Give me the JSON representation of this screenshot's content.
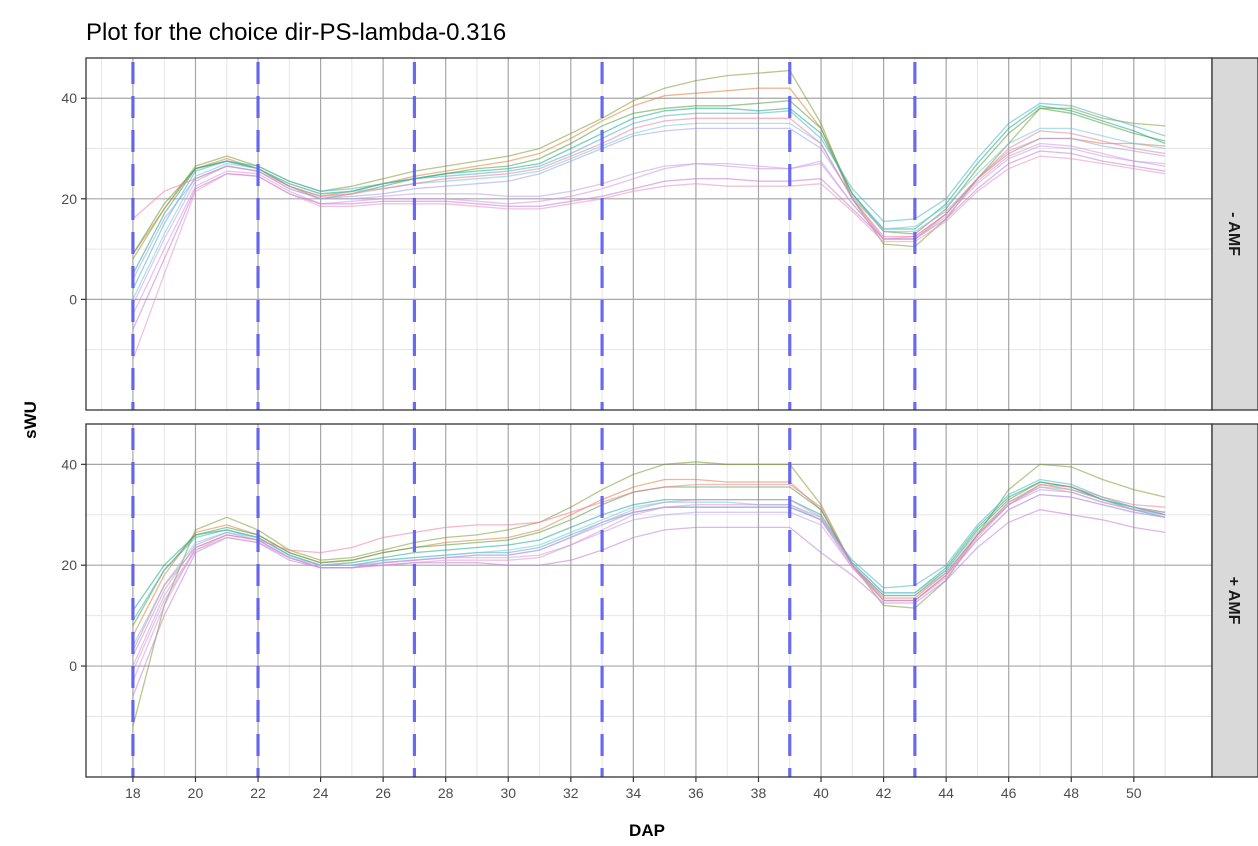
{
  "chart_data": {
    "type": "line",
    "title": "Plot for the choice dir-PS-lambda-0.316",
    "xlabel": "DAP",
    "ylabel": "sWU",
    "xlim": [
      16.5,
      52.5
    ],
    "ylim": [
      -22,
      48
    ],
    "x_ticks": [
      18,
      20,
      22,
      24,
      26,
      28,
      30,
      32,
      34,
      36,
      38,
      40,
      42,
      44,
      46,
      48,
      50
    ],
    "y_ticks": [
      0,
      20,
      40
    ],
    "grid": true,
    "vlines": {
      "x": [
        18,
        22,
        27,
        33,
        39,
        43
      ],
      "color": "#5b5bef",
      "style": "dashed"
    },
    "x": [
      18,
      19,
      20,
      21,
      22,
      23,
      24,
      25,
      26,
      27,
      28,
      29,
      30,
      31,
      32,
      33,
      34,
      35,
      36,
      37,
      38,
      39,
      40,
      41,
      42,
      43,
      44,
      45,
      46,
      47,
      48,
      49,
      50,
      51
    ],
    "panels": [
      {
        "strip_label": "- AMF",
        "series": [
          {
            "color": "#7a9a2e",
            "values": [
              8,
              18,
              26.5,
              28.5,
              26.5,
              23.5,
              21.5,
              22.5,
              24,
              25.5,
              26.5,
              27.5,
              28.5,
              30,
              33,
              36,
              39.5,
              42,
              43.5,
              44.5,
              45,
              45.5,
              35,
              20,
              11,
              10.5,
              16,
              24,
              31,
              38,
              38,
              36,
              35,
              34.5
            ]
          },
          {
            "color": "#e07b39",
            "values": [
              9,
              18,
              26,
              28,
              26,
              22.5,
              20.5,
              21.5,
              23,
              24.5,
              25.5,
              26.5,
              27.5,
              29,
              32,
              35.5,
              38.5,
              40.5,
              41,
              41.5,
              42,
              42,
              34,
              20,
              12,
              12,
              17,
              24,
              29,
              32,
              32,
              31,
              31,
              30.5
            ]
          },
          {
            "color": "#4d9e3a",
            "values": [
              9,
              19,
              26,
              27.5,
              26,
              22.5,
              20,
              21,
              22.5,
              24,
              25,
              26,
              26.5,
              28,
              31,
              34.5,
              37,
              38,
              38.5,
              38.5,
              39,
              39.5,
              34,
              21,
              13.5,
              13,
              18,
              26,
              33,
              38,
              37,
              35,
              33,
              31.5
            ]
          },
          {
            "color": "#17a58b",
            "values": [
              5,
              17,
              26,
              27.5,
              26,
              23,
              21,
              21.5,
              23,
              24,
              25,
              25.5,
              26,
              27,
              30,
              33,
              36,
              37.5,
              38,
              38,
              37.5,
              38,
              33,
              21,
              14,
              14,
              19,
              27,
              34,
              38.5,
              37.5,
              35.5,
              33.5,
              31
            ]
          },
          {
            "color": "#41b3c7",
            "values": [
              2,
              15,
              25.5,
              27.5,
              26.5,
              23.5,
              21.5,
              22,
              23,
              24,
              24.5,
              25,
              25.5,
              26.5,
              29,
              32,
              35,
              36.5,
              37,
              37,
              37,
              37.5,
              32,
              22,
              15.5,
              16,
              20,
              28,
              35,
              39,
              38.5,
              36.5,
              34.5,
              32.5
            ]
          },
          {
            "color": "#6ec9d9",
            "values": [
              0,
              13,
              24.5,
              27,
              26,
              23,
              21,
              21.5,
              22,
              23,
              23.5,
              24,
              24.5,
              25.5,
              28,
              30.5,
              33,
              34.5,
              35,
              35,
              35,
              35,
              31,
              20,
              14,
              14.5,
              18.5,
              25,
              31,
              34,
              34,
              32.5,
              31,
              30
            ]
          },
          {
            "color": "#9aa0e8",
            "values": [
              4,
              16,
              24,
              26.5,
              25.5,
              22,
              20,
              20.5,
              21,
              22,
              22.5,
              23,
              23.5,
              25,
              27.5,
              30,
              32.5,
              33.5,
              34,
              34,
              34,
              34,
              30,
              20.5,
              13.5,
              13.5,
              17.5,
              24,
              29.5,
              32,
              32,
              30.5,
              29.5,
              28.5
            ]
          },
          {
            "color": "#d98fe0",
            "values": [
              -3,
              10,
              22.5,
              25.5,
              25,
              21.5,
              19,
              19.5,
              20,
              20,
              20,
              19.5,
              19,
              19.5,
              20.5,
              22,
              24,
              26,
              27,
              26.5,
              26,
              26,
              27,
              19,
              12,
              12.5,
              17,
              23.5,
              28.5,
              31,
              30.5,
              29,
              27.5,
              26.5
            ]
          },
          {
            "color": "#c27ad9",
            "values": [
              -6,
              8,
              22,
              25,
              24.5,
              21,
              19,
              19,
              19.5,
              19.5,
              19.5,
              19,
              18.5,
              18.5,
              19.5,
              20.5,
              22,
              23.5,
              24,
              24,
              23.5,
              23.5,
              24,
              18,
              12,
              12,
              16,
              22,
              27,
              29.5,
              29,
              27.5,
              26.5,
              25.5
            ]
          },
          {
            "color": "#e88fc0",
            "values": [
              -12,
              5,
              21.5,
              25,
              24.5,
              21,
              18.5,
              18.5,
              19,
              19,
              19,
              18.5,
              18,
              18,
              19,
              20,
              21.5,
              22.5,
              23,
              22.5,
              22.5,
              22.5,
              23,
              17.5,
              11.5,
              11.5,
              15.5,
              21.5,
              26,
              28.5,
              28,
              27,
              26,
              25
            ]
          },
          {
            "color": "#f07a9a",
            "values": [
              16,
              21.5,
              24,
              26.5,
              25.5,
              22.5,
              20.5,
              21,
              22,
              23,
              24,
              24.5,
              25,
              26,
              28.5,
              31,
              34,
              35.5,
              36,
              36,
              36,
              36,
              31,
              20,
              12.5,
              12.5,
              17,
              24,
              30,
              33.5,
              33,
              31.5,
              30,
              29
            ]
          },
          {
            "color": "#b9a0ea",
            "values": [
              -1,
              12,
              23.5,
              26.5,
              25.5,
              22,
              20,
              20,
              20.5,
              21,
              21,
              21,
              20.5,
              20.5,
              21.5,
              23,
              25,
              26.5,
              27,
              27,
              26.5,
              26,
              27.5,
              19,
              12,
              12,
              16.5,
              23,
              28,
              30.5,
              30,
              28.5,
              27.5,
              27
            ]
          }
        ]
      },
      {
        "strip_label": "+ AMF",
        "series": [
          {
            "color": "#7a9a2e",
            "values": [
              -12,
              12,
              27,
              29.5,
              27,
              23,
              21,
              21.5,
              23,
              24.5,
              25.5,
              26,
              27,
              28.5,
              31.5,
              35,
              38,
              40,
              40.5,
              40,
              40,
              40,
              32,
              20,
              12,
              11.5,
              17,
              26,
              35,
              40,
              39.5,
              37,
              35,
              33.5
            ]
          },
          {
            "color": "#e07b39",
            "values": [
              6,
              18,
              26.5,
              28,
              26,
              22.5,
              20.5,
              21,
              22.5,
              23.5,
              24.5,
              25,
              25.5,
              27,
              30,
              33,
              35.5,
              37,
              37,
              36.5,
              36.5,
              36.5,
              31,
              20,
              13.5,
              13.5,
              18.5,
              26,
              32,
              36,
              35,
              33,
              31.5,
              30.5
            ]
          },
          {
            "color": "#4d9e3a",
            "values": [
              8,
              19,
              26,
              27.5,
              26,
              22.5,
              20.5,
              21,
              22.5,
              23.5,
              24,
              24.5,
              25,
              26.5,
              29,
              32,
              34.5,
              35.5,
              35.5,
              35.5,
              35.5,
              35.5,
              31,
              20,
              14,
              14,
              19,
              27,
              33,
              36.5,
              35.5,
              33,
              31.5,
              30
            ]
          },
          {
            "color": "#17a58b",
            "values": [
              11,
              20,
              26,
              27,
              25.5,
              22,
              20,
              20.5,
              21.5,
              22.5,
              23,
              23.5,
              24,
              25,
              27.5,
              30,
              32,
              33,
              33,
              33,
              33,
              33,
              30,
              20.5,
              14.5,
              14.5,
              19.5,
              27.5,
              33.5,
              36.5,
              35.5,
              33,
              31,
              29.5
            ]
          },
          {
            "color": "#41b3c7",
            "values": [
              9,
              19,
              25.5,
              27,
              25.5,
              22,
              20,
              20,
              21,
              21.5,
              22,
              22.5,
              22.5,
              23.5,
              26,
              28.5,
              30.5,
              31.5,
              31.5,
              31.5,
              31.5,
              31.5,
              29,
              21,
              15.5,
              16,
              20,
              28,
              34,
              37,
              36,
              33.5,
              31.5,
              30
            ]
          },
          {
            "color": "#6ec9d9",
            "values": [
              4,
              16,
              24.5,
              26.5,
              25.5,
              22,
              20,
              20,
              21,
              21.5,
              22,
              22.5,
              23,
              24,
              26.5,
              29,
              31.5,
              32.5,
              32.5,
              32.5,
              32,
              32,
              29.5,
              20.5,
              14.5,
              14.5,
              19,
              26.5,
              32.5,
              35.5,
              35,
              33,
              31.5,
              30.5
            ]
          },
          {
            "color": "#9aa0e8",
            "values": [
              2,
              15,
              24,
              26.5,
              25,
              21.5,
              19.5,
              19.5,
              20.5,
              21,
              21.5,
              22,
              22,
              23,
              25.5,
              28,
              30.5,
              31.5,
              31.5,
              31.5,
              31.5,
              31.5,
              29,
              20,
              14,
              14,
              18.5,
              26,
              32,
              35,
              34.5,
              32.5,
              31,
              30
            ]
          },
          {
            "color": "#d98fe0",
            "values": [
              -3,
              12,
              23.5,
              26,
              25,
              21.5,
              19.5,
              19.5,
              20.5,
              21,
              21.5,
              22,
              22,
              23,
              25.5,
              28.5,
              31,
              32.5,
              33,
              33,
              33,
              33,
              29.5,
              20,
              13,
              13,
              18,
              25,
              31,
              34,
              33.5,
              32,
              30.5,
              29.5
            ]
          },
          {
            "color": "#c27ad9",
            "values": [
              -6,
              10,
              22.5,
              25.5,
              24.5,
              21,
              19.5,
              19.5,
              20,
              20.5,
              20.5,
              20.5,
              20,
              20,
              21,
              23,
              25.5,
              27,
              27.5,
              27.5,
              27.5,
              27.5,
              22.5,
              18,
              12.5,
              12.5,
              17,
              23.5,
              28.5,
              31,
              30,
              29,
              27.5,
              26.5
            ]
          },
          {
            "color": "#e88fc0",
            "values": [
              0,
              14,
              23,
              26,
              25,
              21.5,
              19.5,
              19.5,
              20,
              20.5,
              21,
              21,
              21,
              21.5,
              24,
              27,
              30,
              31.5,
              32,
              32,
              32,
              32,
              29,
              19.5,
              13,
              13,
              18,
              25.5,
              32,
              35.5,
              34.5,
              32.5,
              31,
              30.5
            ]
          },
          {
            "color": "#f07a9a",
            "values": [
              3,
              16,
              23.5,
              26,
              25,
              23,
              22.5,
              23.5,
              25.5,
              26.5,
              27.5,
              28,
              28,
              28.5,
              30.5,
              32.5,
              34.5,
              35.5,
              36,
              36,
              36,
              36,
              31.5,
              20,
              13,
              13,
              18,
              26,
              32.5,
              36,
              35.5,
              33.5,
              32,
              31.5
            ]
          },
          {
            "color": "#b9a0ea",
            "values": [
              -1,
              13,
              23,
              25.5,
              24.5,
              21.5,
              20,
              20,
              20.5,
              21,
              21.5,
              21.5,
              21.5,
              22,
              24,
              26.5,
              29,
              30,
              30.5,
              30.5,
              30.5,
              30.5,
              28,
              19.5,
              13,
              13,
              17.5,
              25,
              31,
              34,
              33.5,
              32,
              30.5,
              29.5
            ]
          }
        ]
      }
    ]
  }
}
